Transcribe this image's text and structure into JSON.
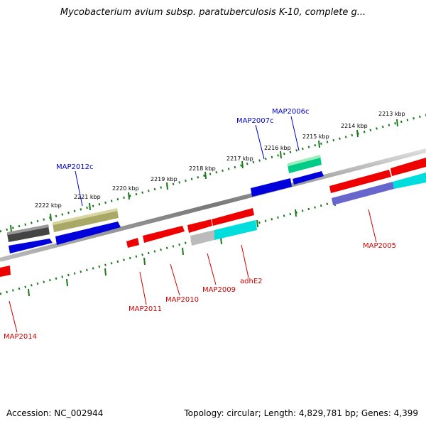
{
  "title": "Mycobacterium avium subsp. paratuberculosis K-10, complete g...",
  "footer": {
    "accession": "Accession: NC_002944",
    "summary": "Topology: circular; Length: 4,829,781 bp; Genes: 4,399"
  },
  "colors": {
    "background": "#ffffff",
    "backbone": "#888888",
    "tick": "#1a7a1a",
    "label_top": "#0000cc",
    "label_bottom": "#cc0000"
  },
  "ticks": [
    {
      "label": "2213 kbp"
    },
    {
      "label": "2214 kbp"
    },
    {
      "label": "2215 kbp"
    },
    {
      "label": "2216 kbp"
    },
    {
      "label": "2217 kbp"
    },
    {
      "label": "2218 kbp"
    },
    {
      "label": "2219 kbp"
    },
    {
      "label": "2220 kbp"
    },
    {
      "label": "2221 kbp"
    },
    {
      "label": "2222 kbp"
    }
  ],
  "genes": [
    {
      "name": "MAP2006c",
      "strand": "top",
      "color": "#00cc88"
    },
    {
      "name": "MAP2007c",
      "strand": "top",
      "color": "#0000dd"
    },
    {
      "name": "MAP2012c",
      "strand": "top",
      "color": "#aaa866"
    },
    {
      "name": "MAP2005",
      "strand": "bottom",
      "color": "#ee0000"
    },
    {
      "name": "adhE2",
      "strand": "bottom",
      "color": "#00dddd"
    },
    {
      "name": "MAP2009",
      "strand": "bottom",
      "color": "#ee0000"
    },
    {
      "name": "MAP2010",
      "strand": "bottom",
      "color": "#ee0000"
    },
    {
      "name": "MAP2011",
      "strand": "bottom",
      "color": "#ee0000"
    },
    {
      "name": "MAP2014",
      "strand": "bottom",
      "color": "#ee0000"
    }
  ]
}
